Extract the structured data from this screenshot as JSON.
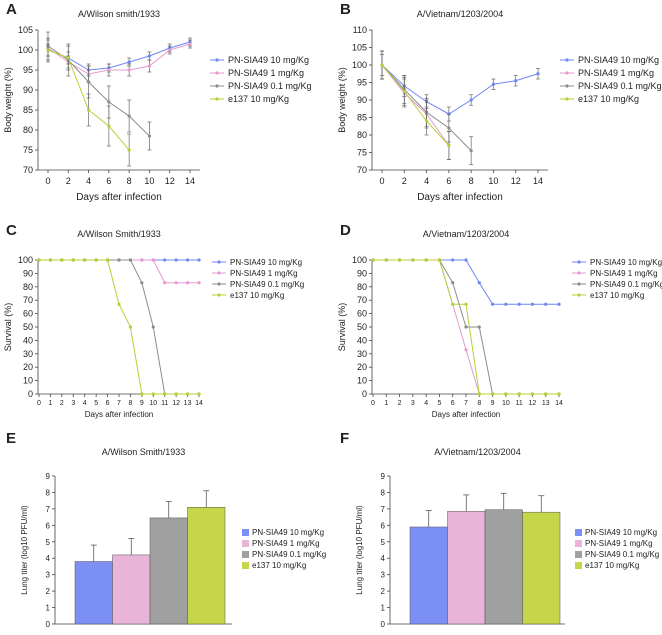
{
  "colors": {
    "pn10": "#6f86f0",
    "pn1": "#e59ad0",
    "pn01": "#8c8c8c",
    "e137": "#b8cf36",
    "axis": "#444444",
    "bar_pn10": "#7b8ff5",
    "bar_pn1": "#e8b4d8",
    "bar_pn01": "#a0a0a0",
    "bar_e137": "#c5d64a"
  },
  "chart_data": [
    {
      "panel": "A",
      "type": "line",
      "title": "A/Wilson smith/1933",
      "xlabel": "Days after infection",
      "ylabel": "Body weight (%)",
      "xlim": [
        0,
        14
      ],
      "ylim": [
        70,
        105
      ],
      "xticks": [
        "0",
        "2",
        "4",
        "6",
        "8",
        "10",
        "12",
        "14"
      ],
      "yticks": [
        "70",
        "75",
        "80",
        "85",
        "90",
        "95",
        "100",
        "105"
      ],
      "legend": "right",
      "series": [
        {
          "name": "PN-SIA49 10 mg/Kg",
          "x": [
            0,
            2,
            4,
            6,
            8,
            10,
            12,
            14
          ],
          "values": [
            100,
            98,
            95,
            95.5,
            97,
            98.5,
            100.5,
            102
          ],
          "errors": [
            1.5,
            1.5,
            1.5,
            1,
            1,
            1,
            1,
            1
          ]
        },
        {
          "name": "PN-SIA49 1 mg/Kg",
          "x": [
            0,
            2,
            4,
            6,
            8,
            10,
            12,
            14
          ],
          "values": [
            100.5,
            97,
            94,
            95,
            95,
            96,
            100,
            101.5
          ],
          "errors": [
            2,
            1.5,
            2,
            1.5,
            1.5,
            1.5,
            1,
            1
          ]
        },
        {
          "name": "PN-SIA49 0.1 mg/Kg",
          "x": [
            0,
            2,
            4,
            6,
            8,
            10
          ],
          "values": [
            101,
            97.5,
            92,
            87,
            83.5,
            78.5
          ],
          "errors": [
            3.5,
            4,
            4,
            4,
            4,
            3.5
          ]
        },
        {
          "name": "e137 10 mg/Kg",
          "x": [
            0,
            2,
            4,
            6,
            8
          ],
          "values": [
            100,
            98,
            85,
            81,
            75
          ],
          "errors": [
            3,
            3,
            4,
            5,
            4
          ]
        }
      ]
    },
    {
      "panel": "B",
      "type": "line",
      "title": "A/Vietnam/1203/2004",
      "xlabel": "Days after infection",
      "ylabel": "Body weight (%)",
      "xlim": [
        0,
        14
      ],
      "ylim": [
        70,
        110
      ],
      "xticks": [
        "0",
        "2",
        "4",
        "6",
        "8",
        "10",
        "12",
        "14"
      ],
      "yticks": [
        "70",
        "75",
        "80",
        "85",
        "90",
        "95",
        "100",
        "105",
        "110"
      ],
      "legend": "right",
      "series": [
        {
          "name": "PN-SIA49 10 mg/Kg",
          "x": [
            0,
            2,
            4,
            6,
            8,
            10,
            12,
            14
          ],
          "values": [
            100,
            94,
            89.5,
            86,
            90,
            94.5,
            95.5,
            97.5
          ],
          "errors": [
            3,
            3,
            2,
            2,
            1.5,
            1.5,
            1.5,
            1.5
          ]
        },
        {
          "name": "PN-SIA49 1 mg/Kg",
          "x": [
            0,
            2,
            4,
            6
          ],
          "values": [
            100,
            92,
            86,
            77
          ],
          "errors": [
            4,
            4,
            4,
            4
          ]
        },
        {
          "name": "PN-SIA49 0.1 mg/Kg",
          "x": [
            0,
            2,
            4,
            6,
            8
          ],
          "values": [
            100,
            93,
            86.5,
            82,
            75.5
          ],
          "errors": [
            4,
            4,
            4,
            4,
            4
          ]
        },
        {
          "name": "e137 10 mg/Kg",
          "x": [
            0,
            2,
            4,
            6
          ],
          "values": [
            100,
            92.5,
            84,
            77
          ],
          "errors": [
            4,
            4,
            4,
            4
          ]
        }
      ]
    },
    {
      "panel": "C",
      "type": "line",
      "title": "A/Wilson Smith/1933",
      "xlabel": "Days after infection",
      "ylabel": "Survival (%)",
      "xlim": [
        0,
        14
      ],
      "ylim": [
        0,
        100
      ],
      "xticks": [
        "0",
        "1",
        "2",
        "3",
        "4",
        "5",
        "6",
        "7",
        "8",
        "9",
        "10",
        "11",
        "12",
        "13",
        "14"
      ],
      "yticks": [
        "0",
        "10",
        "20",
        "30",
        "40",
        "50",
        "60",
        "70",
        "80",
        "90",
        "100"
      ],
      "legend": "right",
      "series": [
        {
          "name": "PN-SIA49 10 mg/Kg",
          "x": [
            0,
            1,
            2,
            3,
            4,
            5,
            6,
            7,
            8,
            9,
            10,
            11,
            12,
            13,
            14
          ],
          "values": [
            100,
            100,
            100,
            100,
            100,
            100,
            100,
            100,
            100,
            100,
            100,
            100,
            100,
            100,
            100
          ]
        },
        {
          "name": "PN-SIA49 1 mg/Kg",
          "x": [
            0,
            1,
            2,
            3,
            4,
            5,
            6,
            7,
            8,
            9,
            10,
            11,
            12,
            13,
            14
          ],
          "values": [
            100,
            100,
            100,
            100,
            100,
            100,
            100,
            100,
            100,
            100,
            100,
            83,
            83,
            83,
            83
          ]
        },
        {
          "name": "PN-SIA49 0.1 mg/Kg",
          "x": [
            0,
            1,
            2,
            3,
            4,
            5,
            6,
            7,
            8,
            9,
            10,
            11,
            12,
            13,
            14
          ],
          "values": [
            100,
            100,
            100,
            100,
            100,
            100,
            100,
            100,
            100,
            83,
            50,
            0,
            0,
            0,
            0
          ]
        },
        {
          "name": "e137 10 mg/Kg",
          "x": [
            0,
            1,
            2,
            3,
            4,
            5,
            6,
            7,
            8,
            9,
            10,
            11,
            12,
            13,
            14
          ],
          "values": [
            100,
            100,
            100,
            100,
            100,
            100,
            100,
            67,
            50,
            0,
            0,
            0,
            0,
            0,
            0
          ]
        }
      ]
    },
    {
      "panel": "D",
      "type": "line",
      "title": "A/Vietnam/1203/2004",
      "xlabel": "Days after infection",
      "ylabel": "Survival (%)",
      "xlim": [
        0,
        14
      ],
      "ylim": [
        0,
        100
      ],
      "xticks": [
        "0",
        "1",
        "2",
        "3",
        "4",
        "5",
        "6",
        "7",
        "8",
        "9",
        "10",
        "11",
        "12",
        "13",
        "14"
      ],
      "yticks": [
        "0",
        "10",
        "20",
        "30",
        "40",
        "50",
        "60",
        "70",
        "80",
        "90",
        "100"
      ],
      "legend": "right",
      "series": [
        {
          "name": "PN-SIA49 10 mg/Kg",
          "x": [
            0,
            1,
            2,
            3,
            4,
            5,
            6,
            7,
            8,
            9,
            10,
            11,
            12,
            13,
            14
          ],
          "values": [
            100,
            100,
            100,
            100,
            100,
            100,
            100,
            100,
            83,
            67,
            67,
            67,
            67,
            67,
            67
          ]
        },
        {
          "name": "PN-SIA49 1 mg/Kg",
          "x": [
            0,
            1,
            2,
            3,
            4,
            5,
            6,
            7,
            8,
            9,
            10,
            11,
            12,
            13,
            14
          ],
          "values": [
            100,
            100,
            100,
            100,
            100,
            100,
            67,
            33,
            0,
            0,
            0,
            0,
            0,
            0,
            0
          ]
        },
        {
          "name": "PN-SIA49 0.1 mg/Kg",
          "x": [
            0,
            1,
            2,
            3,
            4,
            5,
            6,
            7,
            8,
            9,
            10,
            11,
            12,
            13,
            14
          ],
          "values": [
            100,
            100,
            100,
            100,
            100,
            100,
            83,
            50,
            50,
            0,
            0,
            0,
            0,
            0,
            0
          ]
        },
        {
          "name": "e137 10 mg/Kg",
          "x": [
            0,
            1,
            2,
            3,
            4,
            5,
            6,
            7,
            8,
            9,
            10,
            11,
            12,
            13,
            14
          ],
          "values": [
            100,
            100,
            100,
            100,
            100,
            100,
            67,
            67,
            0,
            0,
            0,
            0,
            0,
            0,
            0
          ]
        }
      ]
    },
    {
      "panel": "E",
      "type": "bar",
      "title": "A/Wilson Smith/1933",
      "xlabel": "",
      "ylabel": "Lung titer (log10 PFU/ml)",
      "ylim": [
        0,
        9
      ],
      "yticks": [
        "0",
        "1",
        "2",
        "3",
        "4",
        "5",
        "6",
        "7",
        "8",
        "9"
      ],
      "legend": "right",
      "categories": [
        "PN-SIA49 10 mg/Kg",
        "PN-SIA49 1 mg/Kg",
        "PN-SIA49 0.1 mg/Kg",
        "e137 10 mg/Kg"
      ],
      "values": [
        3.8,
        4.2,
        6.45,
        7.1
      ],
      "errors": [
        1.0,
        1.0,
        1.0,
        1.0
      ]
    },
    {
      "panel": "F",
      "type": "bar",
      "title": "A/Vietnam/1203/2004",
      "xlabel": "",
      "ylabel": "Lung titer (log10 PFU/ml)",
      "ylim": [
        0,
        9
      ],
      "yticks": [
        "0",
        "1",
        "2",
        "3",
        "4",
        "5",
        "6",
        "7",
        "8",
        "9"
      ],
      "legend": "right",
      "categories": [
        "PN-SIA49 10 mg/Kg",
        "PN-SIA49 1 mg/Kg",
        "PN-SIA49 0.1 mg/Kg",
        "e137 10 mg/Kg"
      ],
      "values": [
        5.9,
        6.85,
        6.95,
        6.8
      ],
      "errors": [
        1.0,
        1.0,
        1.0,
        1.0
      ]
    }
  ]
}
